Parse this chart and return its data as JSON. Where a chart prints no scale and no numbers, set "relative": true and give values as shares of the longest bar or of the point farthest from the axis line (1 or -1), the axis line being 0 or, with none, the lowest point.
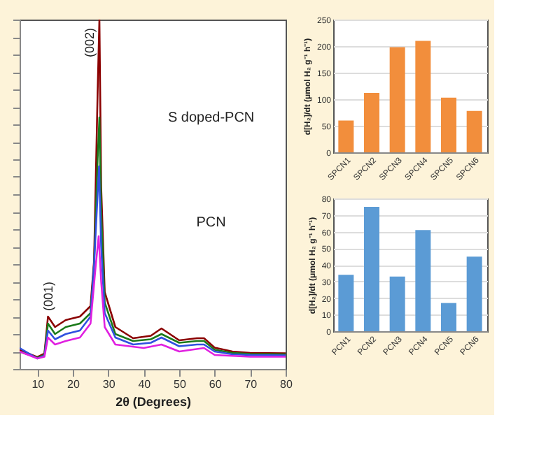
{
  "chart_data": [
    {
      "type": "line",
      "relative": true,
      "xlabel": "2θ (Degrees)",
      "xlim": [
        5,
        80
      ],
      "xticks": [
        10,
        20,
        30,
        40,
        50,
        60,
        70,
        80
      ],
      "tick_labels": "x",
      "grid": false,
      "annotations": [
        {
          "text": "(002)",
          "x": 27.5,
          "y": 1.0
        },
        {
          "text": "(001)",
          "x": 13,
          "y": 0.15
        },
        "S doped-PCN",
        "PCN"
      ],
      "series": [
        {
          "color": "#8b0000",
          "x": [
            5,
            10,
            12,
            13,
            15,
            18,
            22,
            25,
            26,
            27,
            27.5,
            28,
            29,
            32,
            37,
            42,
            45,
            50,
            55,
            57,
            60,
            65,
            70,
            80
          ],
          "values": [
            0.054,
            0.034,
            0.044,
            0.15,
            0.12,
            0.14,
            0.15,
            0.18,
            0.31,
            0.79,
            1.0,
            0.52,
            0.22,
            0.12,
            0.088,
            0.095,
            0.116,
            0.082,
            0.088,
            0.088,
            0.061,
            0.05,
            0.046,
            0.045
          ]
        },
        {
          "color": "#1a7a1a",
          "x": [
            5,
            10,
            12,
            13,
            15,
            18,
            22,
            25,
            26,
            27,
            27.5,
            28,
            29,
            32,
            37,
            42,
            45,
            50,
            55,
            57,
            60,
            65,
            70,
            80
          ],
          "values": [
            0.05,
            0.032,
            0.04,
            0.13,
            0.1,
            0.12,
            0.13,
            0.16,
            0.3,
            0.6,
            0.72,
            0.45,
            0.19,
            0.1,
            0.08,
            0.085,
            0.1,
            0.075,
            0.08,
            0.08,
            0.055,
            0.046,
            0.043,
            0.042
          ]
        },
        {
          "color": "#3050e0",
          "x": [
            5,
            10,
            12,
            13,
            15,
            18,
            22,
            25,
            26,
            27,
            27.4,
            28,
            29,
            32,
            37,
            42,
            45,
            50,
            55,
            57,
            60,
            65,
            70,
            80
          ],
          "values": [
            0.06,
            0.03,
            0.038,
            0.11,
            0.085,
            0.1,
            0.11,
            0.15,
            0.3,
            0.5,
            0.58,
            0.35,
            0.16,
            0.09,
            0.07,
            0.075,
            0.09,
            0.065,
            0.07,
            0.07,
            0.05,
            0.042,
            0.04,
            0.039
          ]
        },
        {
          "color": "#e020e0",
          "x": [
            5,
            10,
            12,
            13,
            15,
            18,
            22,
            25,
            26.5,
            27.3,
            28,
            29,
            32,
            40,
            45,
            50,
            57,
            60,
            70,
            80
          ],
          "values": [
            0.05,
            0.03,
            0.035,
            0.09,
            0.07,
            0.08,
            0.09,
            0.13,
            0.3,
            0.38,
            0.25,
            0.12,
            0.07,
            0.06,
            0.07,
            0.05,
            0.06,
            0.04,
            0.035,
            0.035
          ]
        }
      ]
    },
    {
      "type": "bar",
      "categories": [
        "SPCN1",
        "SPCN2",
        "SPCN3",
        "SPCN4",
        "SPCN5",
        "SPCN6"
      ],
      "values": [
        60,
        112,
        198,
        210,
        103,
        78
      ],
      "color": "#f28e3c",
      "ylabel": "d[H₂]/dt (μmol H₂ g⁻¹ h⁻¹)",
      "ylim": [
        0,
        250
      ],
      "yticks": [
        0,
        50,
        100,
        150,
        200,
        250
      ],
      "grid": "y"
    },
    {
      "type": "bar",
      "categories": [
        "PCN1",
        "PCN2",
        "PCN3",
        "PCN4",
        "PCN5",
        "PCN6"
      ],
      "values": [
        34,
        75,
        33,
        61,
        17,
        45
      ],
      "color": "#5b9bd5",
      "ylabel": "d[H₂]/dt (μmol H₂ g⁻¹ h⁻¹)",
      "ylim": [
        0,
        80
      ],
      "yticks": [
        0,
        10,
        20,
        30,
        40,
        50,
        60,
        70,
        80
      ],
      "grid": "y"
    }
  ]
}
